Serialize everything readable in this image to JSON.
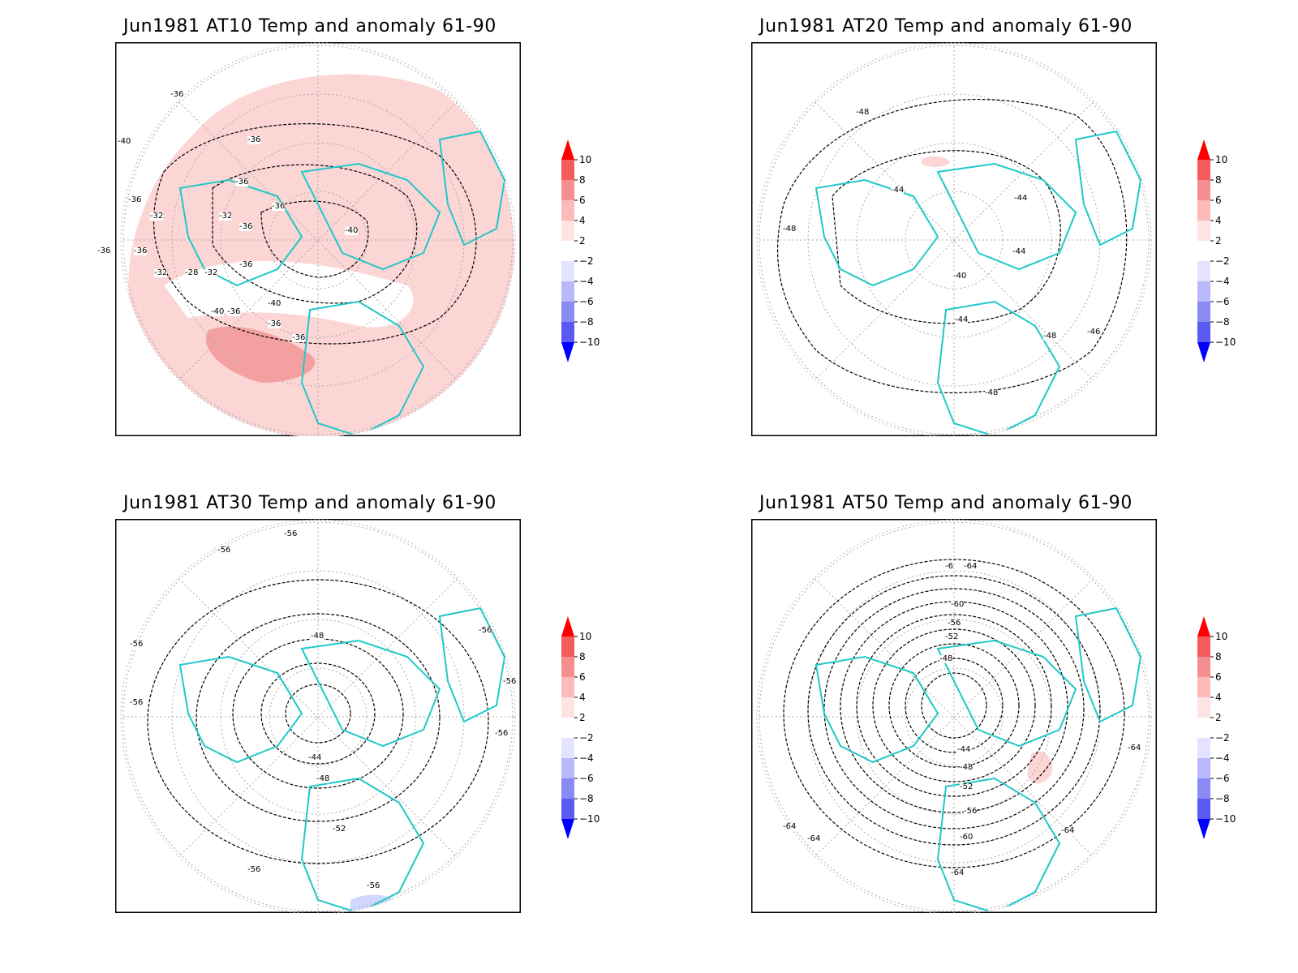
{
  "colorbar": {
    "levels": [
      10,
      8,
      6,
      4,
      2,
      -2,
      -4,
      -6,
      -8,
      -10
    ],
    "labels": [
      "10",
      "8",
      "6",
      "4",
      "2",
      "−2",
      "−4",
      "−6",
      "−8",
      "−10"
    ],
    "colors": [
      "#ff0000",
      "#f45b5b",
      "#f58e8e",
      "#fcbaba",
      "#ffe3e3",
      "#ffffff",
      "#e3e3ff",
      "#b8b8fb",
      "#8a8af5",
      "#5a5af2",
      "#0000ff"
    ]
  },
  "colors": {
    "coastline": "#20c8c8",
    "contour": "#000000",
    "anomaly_light": "#fcd5d5",
    "anomaly_medium": "#f5a0a0",
    "anomaly_negative": "#d0d8ff",
    "grid": "#aaaaaa"
  },
  "panels": [
    {
      "title": "Jun1981  AT10  Temp  and  anomaly  61-90",
      "contour_labels": [
        "-36",
        "-40",
        "-36",
        "-36",
        "-32",
        "-32",
        "-36",
        "-36",
        "-32",
        "-28",
        "-32",
        "-36",
        "-36",
        "-36",
        "-36",
        "-40",
        "-36",
        "-40",
        "-36",
        "-36",
        "-40"
      ]
    },
    {
      "title": "Jun1981  AT20  Temp  and  anomaly  61-90",
      "contour_labels": [
        "-48",
        "-44",
        "-44",
        "-48",
        "-44",
        "-40",
        "-44",
        "-48",
        "-46",
        "-48"
      ]
    },
    {
      "title": "Jun1981  AT30  Temp  and  anomaly  61-90",
      "contour_labels": [
        "-56",
        "-56",
        "-56",
        "-48",
        "-56",
        "-56",
        "-56",
        "-44",
        "-48",
        "-56",
        "-52",
        "-56",
        "-56"
      ]
    },
    {
      "title": "Jun1981  AT50  Temp  and  anomaly  61-90",
      "contour_labels": [
        "-6",
        "-64",
        "-60",
        "-56",
        "-52",
        "-48",
        "-44",
        "-48",
        "-52",
        "-56",
        "-60",
        "-64",
        "-64",
        "-64",
        "-64",
        "-64"
      ]
    }
  ]
}
